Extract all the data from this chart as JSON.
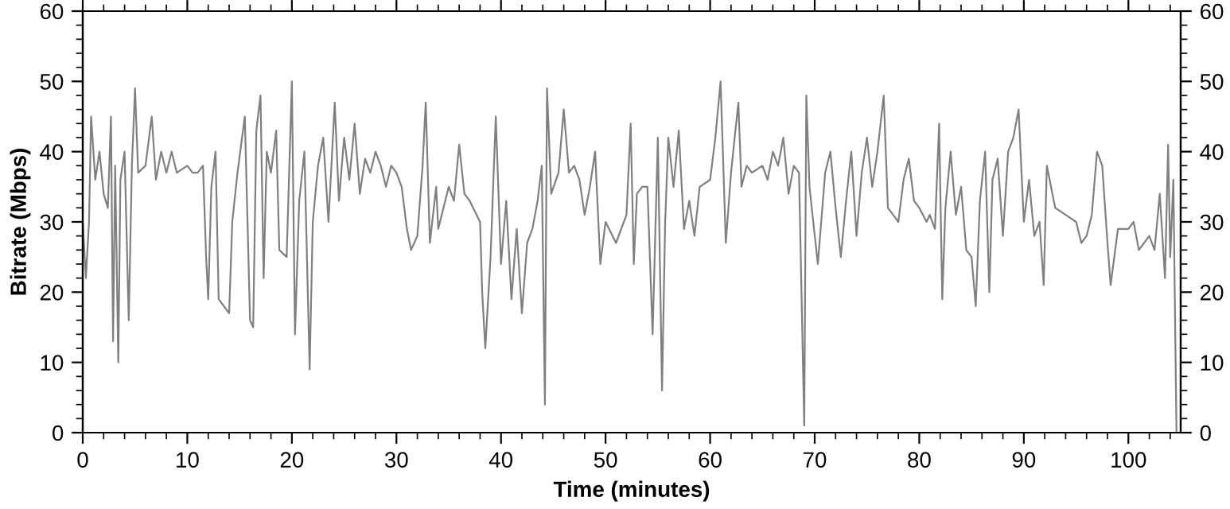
{
  "chart_data": {
    "type": "line",
    "xlabel": "Time (minutes)",
    "ylabel": "Bitrate (Mbps)",
    "xlim": [
      0,
      105
    ],
    "ylim": [
      0,
      60
    ],
    "y2lim": [
      0,
      60
    ],
    "xticks": [
      0,
      {
        "value": 2,
        "label": null
      },
      {
        "value": 4,
        "label": null
      },
      {
        "value": 6,
        "label": null
      },
      {
        "value": 8,
        "label": null
      },
      10,
      {
        "value": 12,
        "label": null
      },
      {
        "value": 14,
        "label": null
      },
      {
        "value": 16,
        "label": null
      },
      {
        "value": 18,
        "label": null
      },
      20,
      {
        "value": 22,
        "label": null
      },
      {
        "value": 24,
        "label": null
      },
      {
        "value": 26,
        "label": null
      },
      {
        "value": 28,
        "label": null
      },
      30,
      {
        "value": 32,
        "label": null
      },
      {
        "value": 34,
        "label": null
      },
      {
        "value": 36,
        "label": null
      },
      {
        "value": 38,
        "label": null
      },
      40,
      {
        "value": 42,
        "label": null
      },
      {
        "value": 44,
        "label": null
      },
      {
        "value": 46,
        "label": null
      },
      {
        "value": 48,
        "label": null
      },
      50,
      {
        "value": 52,
        "label": null
      },
      {
        "value": 54,
        "label": null
      },
      {
        "value": 56,
        "label": null
      },
      {
        "value": 58,
        "label": null
      },
      60,
      {
        "value": 62,
        "label": null
      },
      {
        "value": 64,
        "label": null
      },
      {
        "value": 66,
        "label": null
      },
      {
        "value": 68,
        "label": null
      },
      70,
      {
        "value": 72,
        "label": null
      },
      {
        "value": 74,
        "label": null
      },
      {
        "value": 76,
        "label": null
      },
      {
        "value": 78,
        "label": null
      },
      80,
      {
        "value": 82,
        "label": null
      },
      {
        "value": 84,
        "label": null
      },
      {
        "value": 86,
        "label": null
      },
      {
        "value": 88,
        "label": null
      },
      90,
      {
        "value": 92,
        "label": null
      },
      {
        "value": 94,
        "label": null
      },
      {
        "value": 96,
        "label": null
      },
      {
        "value": 98,
        "label": null
      },
      100,
      {
        "value": 102,
        "label": null
      },
      {
        "value": 104,
        "label": null
      }
    ],
    "yticks": [
      0,
      {
        "value": 2,
        "label": null
      },
      {
        "value": 4,
        "label": null
      },
      {
        "value": 6,
        "label": null
      },
      {
        "value": 8,
        "label": null
      },
      10,
      {
        "value": 12,
        "label": null
      },
      {
        "value": 14,
        "label": null
      },
      {
        "value": 16,
        "label": null
      },
      {
        "value": 18,
        "label": null
      },
      20,
      {
        "value": 22,
        "label": null
      },
      {
        "value": 24,
        "label": null
      },
      {
        "value": 26,
        "label": null
      },
      {
        "value": 28,
        "label": null
      },
      30,
      {
        "value": 32,
        "label": null
      },
      {
        "value": 34,
        "label": null
      },
      {
        "value": 36,
        "label": null
      },
      {
        "value": 38,
        "label": null
      },
      40,
      {
        "value": 42,
        "label": null
      },
      {
        "value": 44,
        "label": null
      },
      {
        "value": 46,
        "label": null
      },
      {
        "value": 48,
        "label": null
      },
      50,
      {
        "value": 52,
        "label": null
      },
      {
        "value": 54,
        "label": null
      },
      {
        "value": 56,
        "label": null
      },
      {
        "value": 58,
        "label": null
      },
      60
    ],
    "y2ticks": [
      0,
      {
        "value": 2,
        "label": null
      },
      {
        "value": 4,
        "label": null
      },
      {
        "value": 6,
        "label": null
      },
      {
        "value": 8,
        "label": null
      },
      10,
      {
        "value": 12,
        "label": null
      },
      {
        "value": 14,
        "label": null
      },
      {
        "value": 16,
        "label": null
      },
      {
        "value": 18,
        "label": null
      },
      20,
      {
        "value": 22,
        "label": null
      },
      {
        "value": 24,
        "label": null
      },
      {
        "value": 26,
        "label": null
      },
      {
        "value": 28,
        "label": null
      },
      30,
      {
        "value": 32,
        "label": null
      },
      {
        "value": 34,
        "label": null
      },
      {
        "value": 36,
        "label": null
      },
      {
        "value": 38,
        "label": null
      },
      40,
      {
        "value": 42,
        "label": null
      },
      {
        "value": 44,
        "label": null
      },
      {
        "value": 46,
        "label": null
      },
      {
        "value": 48,
        "label": null
      },
      50,
      {
        "value": 52,
        "label": null
      },
      {
        "value": 54,
        "label": null
      },
      {
        "value": 56,
        "label": null
      },
      {
        "value": 58,
        "label": null
      },
      60
    ],
    "series": [
      {
        "color": "#808080",
        "x": [
          0,
          0.3,
          0.6,
          0.8,
          1.2,
          1.6,
          2,
          2.4,
          2.7,
          2.9,
          3.1,
          3.4,
          3.6,
          4,
          4.4,
          4.7,
          5,
          5.3,
          6,
          6.6,
          7,
          7.5,
          8,
          8.5,
          9,
          10,
          10.5,
          11,
          11.5,
          11.8,
          12,
          12.3,
          12.7,
          13,
          13.5,
          14,
          14.3,
          14.8,
          15.5,
          16,
          16.3,
          16.6,
          17,
          17.3,
          17.6,
          18,
          18.5,
          18.8,
          19.5,
          20,
          20.3,
          20.7,
          21.2,
          21.7,
          22,
          22.5,
          23,
          23.5,
          24.1,
          24.5,
          25,
          25.5,
          26,
          26.5,
          27,
          27.5,
          28,
          28.5,
          29,
          29.5,
          30,
          30.5,
          31,
          31.4,
          32,
          32.5,
          32.8,
          33.2,
          33.8,
          34,
          35,
          35.5,
          36,
          36.5,
          37,
          38,
          38.2,
          38.5,
          39,
          39.5,
          40,
          40.5,
          41,
          41.5,
          42,
          42.5,
          43,
          43.5,
          43.9,
          44.2,
          44.4,
          44.8,
          45.5,
          46,
          46.5,
          47,
          47.5,
          48,
          48.5,
          49,
          49.5,
          50,
          51,
          52,
          52.4,
          52.7,
          53,
          53.5,
          54,
          54.5,
          55,
          55.4,
          55.7,
          56,
          56.5,
          57,
          57.5,
          58,
          58.5,
          59,
          60,
          60.5,
          61,
          61.5,
          62,
          62.7,
          63,
          63.5,
          64,
          65,
          65.5,
          66,
          66.5,
          67,
          67.5,
          68,
          68.5,
          69,
          69.2,
          69.5,
          70.3,
          71,
          71.5,
          72,
          72.5,
          73,
          73.5,
          74,
          74.5,
          75,
          75.5,
          76,
          76.6,
          77,
          77.5,
          78,
          78.5,
          79,
          79.5,
          80,
          80.7,
          81,
          81.5,
          81.9,
          82.2,
          82.5,
          83,
          83.5,
          84,
          84.5,
          85,
          85.4,
          85.8,
          86.3,
          86.7,
          87,
          87.5,
          88,
          88.5,
          89,
          89.5,
          90,
          90.5,
          91,
          91.5,
          91.9,
          92.2,
          93,
          94,
          95,
          95.5,
          96,
          96.5,
          97,
          97.5,
          98,
          98.3,
          99,
          100,
          100.5,
          101,
          101.5,
          102,
          102.5,
          103,
          103.5,
          103.8,
          104,
          104.3,
          104.6
        ],
        "values": [
          30,
          22,
          30,
          45,
          36,
          40,
          34,
          32,
          45,
          13,
          38,
          10,
          36,
          40,
          16,
          38,
          49,
          37,
          38,
          45,
          36,
          40,
          37,
          40,
          37,
          38,
          37,
          37,
          38,
          25,
          19,
          35,
          40,
          19,
          18,
          17,
          30,
          37,
          45,
          16,
          15,
          43,
          48,
          22,
          40,
          37,
          43,
          26,
          25,
          50,
          14,
          33,
          40,
          9,
          30,
          38,
          42,
          30,
          47,
          33,
          42,
          36,
          44,
          34,
          39,
          37,
          40,
          38,
          35,
          38,
          37,
          35,
          29,
          26,
          28,
          38,
          47,
          27,
          35,
          29,
          35,
          33,
          41,
          34,
          33,
          30,
          20,
          12,
          25,
          45,
          24,
          33,
          19,
          29,
          17,
          27,
          29,
          33,
          38,
          4,
          49,
          34,
          37,
          46,
          37,
          38,
          36,
          31,
          35,
          40,
          24,
          30,
          27,
          31,
          44,
          24,
          34,
          35,
          35,
          14,
          42,
          6,
          30,
          42,
          35,
          43,
          29,
          33,
          28,
          35,
          36,
          42,
          50,
          27,
          37,
          47,
          35,
          38,
          37,
          38,
          36,
          40,
          38,
          42,
          34,
          38,
          37,
          1,
          48,
          35,
          24,
          37,
          40,
          32,
          25,
          33,
          40,
          28,
          37,
          42,
          35,
          40,
          48,
          32,
          31,
          30,
          36,
          39,
          33,
          32,
          30,
          31,
          29,
          44,
          19,
          32,
          40,
          31,
          35,
          26,
          25,
          18,
          33,
          40,
          20,
          36,
          39,
          28,
          40,
          42,
          46,
          30,
          36,
          28,
          30,
          21,
          38,
          32,
          31,
          30,
          27,
          28,
          31,
          40,
          38,
          27,
          21,
          29,
          29,
          30,
          26,
          27,
          28,
          26,
          34,
          22,
          41,
          25,
          36,
          0
        ]
      }
    ]
  }
}
